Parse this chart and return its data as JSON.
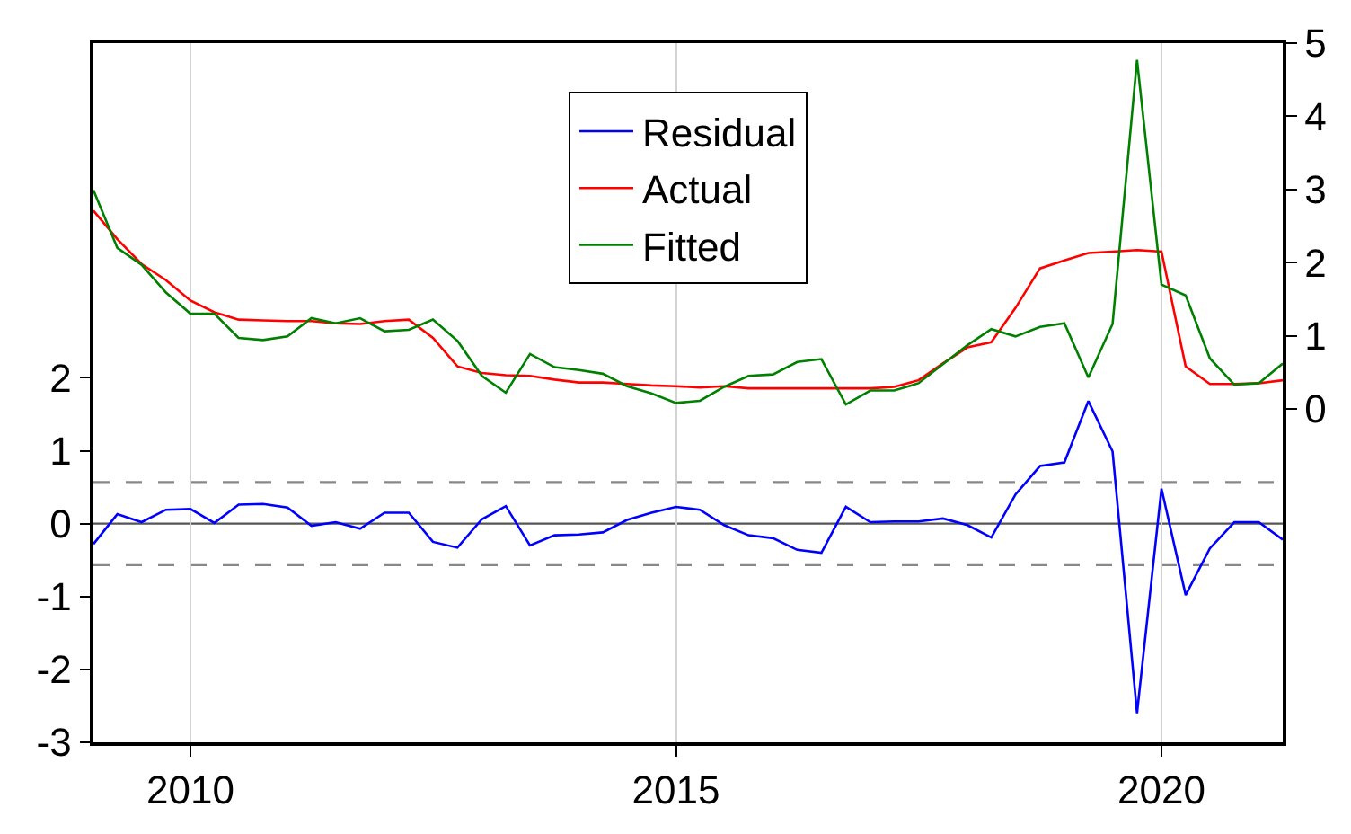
{
  "chart_data": {
    "type": "line",
    "x": [
      "2009-01",
      "2009-04",
      "2009-07",
      "2009-10",
      "2010-01",
      "2010-04",
      "2010-07",
      "2010-10",
      "2011-01",
      "2011-04",
      "2011-07",
      "2011-10",
      "2012-01",
      "2012-04",
      "2012-07",
      "2012-10",
      "2013-01",
      "2013-04",
      "2013-07",
      "2013-10",
      "2014-01",
      "2014-04",
      "2014-07",
      "2014-10",
      "2015-01",
      "2015-04",
      "2015-07",
      "2015-10",
      "2016-01",
      "2016-04",
      "2016-07",
      "2016-10",
      "2017-01",
      "2017-04",
      "2017-07",
      "2017-10",
      "2018-01",
      "2018-04",
      "2018-07",
      "2018-10",
      "2019-01",
      "2019-04",
      "2019-07",
      "2019-10",
      "2020-01",
      "2020-04",
      "2020-07",
      "2020-10",
      "2021-01",
      "2021-04"
    ],
    "series": [
      {
        "name": "Residual",
        "color": "#0000ff",
        "axis": "y",
        "values": [
          -0.28,
          0.13,
          0.02,
          0.19,
          0.2,
          0.01,
          0.26,
          0.27,
          0.22,
          -0.03,
          0.02,
          -0.07,
          0.15,
          0.15,
          -0.25,
          -0.33,
          0.06,
          0.24,
          -0.3,
          -0.16,
          -0.15,
          -0.12,
          0.05,
          0.15,
          0.23,
          0.19,
          -0.02,
          -0.16,
          -0.2,
          -0.36,
          -0.4,
          0.23,
          0.02,
          0.03,
          0.03,
          0.07,
          -0.02,
          -0.19,
          0.4,
          0.79,
          0.84,
          1.68,
          0.99,
          -2.6,
          0.48,
          -0.98,
          -0.34,
          0.02,
          0.02,
          -0.22
        ]
      },
      {
        "name": "Actual",
        "color": "#ff0000",
        "axis": "y2",
        "values": [
          2.71,
          2.32,
          1.98,
          1.76,
          1.48,
          1.32,
          1.22,
          1.21,
          1.2,
          1.2,
          1.17,
          1.16,
          1.2,
          1.22,
          0.97,
          0.58,
          0.49,
          0.46,
          0.45,
          0.4,
          0.36,
          0.36,
          0.34,
          0.32,
          0.31,
          0.29,
          0.31,
          0.28,
          0.28,
          0.28,
          0.28,
          0.28,
          0.28,
          0.3,
          0.39,
          0.62,
          0.84,
          0.91,
          1.38,
          1.92,
          2.03,
          2.13,
          2.15,
          2.17,
          2.15,
          0.58,
          0.34,
          0.34,
          0.35,
          0.39
        ]
      },
      {
        "name": "Fitted",
        "color": "#008000",
        "axis": "y2",
        "values": [
          2.99,
          2.2,
          1.97,
          1.59,
          1.3,
          1.3,
          0.97,
          0.94,
          0.99,
          1.24,
          1.17,
          1.24,
          1.06,
          1.08,
          1.22,
          0.93,
          0.45,
          0.22,
          0.75,
          0.57,
          0.53,
          0.48,
          0.31,
          0.21,
          0.08,
          0.11,
          0.3,
          0.45,
          0.47,
          0.64,
          0.68,
          0.06,
          0.25,
          0.25,
          0.35,
          0.61,
          0.87,
          1.09,
          0.99,
          1.12,
          1.17,
          0.43,
          1.16,
          4.77,
          1.7,
          1.55,
          0.69,
          0.33,
          0.35,
          0.62
        ]
      }
    ],
    "xlim": [
      "2009-01",
      "2021-04"
    ],
    "xticks": [
      {
        "value": "2010-01",
        "label": "2010"
      },
      {
        "value": "2015-01",
        "label": "2015"
      },
      {
        "value": "2020-01",
        "label": "2020"
      }
    ],
    "ylim": [
      -3,
      6.59
    ],
    "yticks": [
      -3,
      -2,
      -1,
      0,
      1,
      2
    ],
    "y2lim": [
      -4.56,
      5.0
    ],
    "y2ticks": [
      0,
      1,
      2,
      3,
      4,
      5
    ],
    "ref_lines": [
      {
        "axis": "y",
        "value": 0,
        "color": "#555555",
        "line_style": "solid"
      },
      {
        "axis": "y",
        "value": 0.57,
        "color": "#888888",
        "line_style": "dashed"
      },
      {
        "axis": "y",
        "value": -0.57,
        "color": "#888888",
        "line_style": "dashed"
      }
    ],
    "grid": "x",
    "legend": "top",
    "line_style": "solid",
    "marker": "none"
  }
}
